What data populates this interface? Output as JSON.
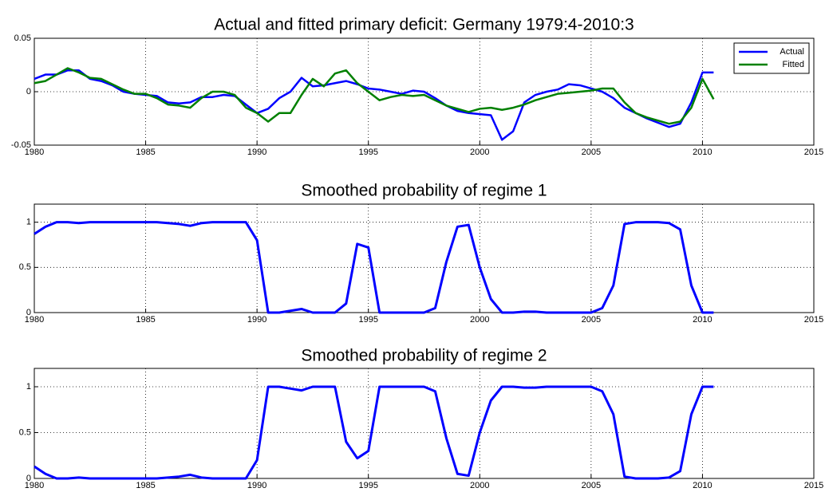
{
  "chart_data": [
    {
      "type": "line",
      "title": "Actual and fitted primary deficit: Germany 1979:4-2010:3",
      "x": [
        1980,
        1980.5,
        1981,
        1981.5,
        1982,
        1982.5,
        1983,
        1983.5,
        1984,
        1984.5,
        1985,
        1985.5,
        1986,
        1986.5,
        1987,
        1987.5,
        1988,
        1988.5,
        1989,
        1989.5,
        1990,
        1990.5,
        1991,
        1991.5,
        1992,
        1992.5,
        1993,
        1993.5,
        1994,
        1994.5,
        1995,
        1995.5,
        1996,
        1996.5,
        1997,
        1997.5,
        1998,
        1998.5,
        1999,
        1999.5,
        2000,
        2000.5,
        2001,
        2001.5,
        2002,
        2002.5,
        2003,
        2003.5,
        2004,
        2004.5,
        2005,
        2005.5,
        2006,
        2006.5,
        2007,
        2007.5,
        2008,
        2008.5,
        2009,
        2009.5,
        2010,
        2010.5
      ],
      "series": [
        {
          "name": "Actual",
          "color": "#0000ff",
          "values": [
            0.012,
            0.016,
            0.016,
            0.02,
            0.02,
            0.012,
            0.01,
            0.006,
            0.0,
            -0.002,
            -0.003,
            -0.004,
            -0.01,
            -0.011,
            -0.01,
            -0.005,
            -0.005,
            -0.003,
            -0.004,
            -0.012,
            -0.02,
            -0.016,
            -0.006,
            0.0,
            0.013,
            0.005,
            0.006,
            0.008,
            0.01,
            0.007,
            0.003,
            0.002,
            0.0,
            -0.002,
            0.001,
            0.0,
            -0.006,
            -0.013,
            -0.018,
            -0.02,
            -0.021,
            -0.022,
            -0.045,
            -0.037,
            -0.01,
            -0.003,
            0.0,
            0.002,
            0.007,
            0.006,
            0.003,
            0.0,
            -0.006,
            -0.015,
            -0.02,
            -0.025,
            -0.029,
            -0.033,
            -0.03,
            -0.01,
            0.018,
            0.018
          ]
        },
        {
          "name": "Fitted",
          "color": "#008000",
          "values": [
            0.008,
            0.01,
            0.016,
            0.022,
            0.018,
            0.013,
            0.012,
            0.007,
            0.002,
            -0.002,
            -0.002,
            -0.006,
            -0.012,
            -0.013,
            -0.015,
            -0.006,
            0.0,
            0.0,
            -0.003,
            -0.015,
            -0.02,
            -0.028,
            -0.02,
            -0.02,
            -0.003,
            0.012,
            0.005,
            0.017,
            0.02,
            0.008,
            0.0,
            -0.008,
            -0.005,
            -0.003,
            -0.004,
            -0.003,
            -0.008,
            -0.013,
            -0.016,
            -0.019,
            -0.016,
            -0.015,
            -0.017,
            -0.015,
            -0.012,
            -0.008,
            -0.005,
            -0.002,
            -0.001,
            0.0,
            0.001,
            0.003,
            0.003,
            -0.01,
            -0.02,
            -0.024,
            -0.027,
            -0.03,
            -0.028,
            -0.015,
            0.012,
            -0.007
          ]
        }
      ],
      "xlim": [
        1980,
        2015
      ],
      "xticks": [
        1980,
        1985,
        1990,
        1995,
        2000,
        2005,
        2010,
        2015
      ],
      "ylim": [
        -0.05,
        0.05
      ],
      "yticks": [
        -0.05,
        0,
        0.05
      ],
      "grid": true,
      "legend": "upper right"
    },
    {
      "type": "line",
      "title": "Smoothed probability of regime 1",
      "x": [
        1980,
        1980.5,
        1981,
        1981.5,
        1982,
        1982.5,
        1983,
        1983.5,
        1984,
        1984.5,
        1985,
        1985.5,
        1986,
        1986.5,
        1987,
        1987.5,
        1988,
        1988.5,
        1989,
        1989.5,
        1990,
        1990.5,
        1991,
        1991.5,
        1992,
        1992.5,
        1993,
        1993.5,
        1994,
        1994.5,
        1995,
        1995.5,
        1996,
        1996.5,
        1997,
        1997.5,
        1998,
        1998.5,
        1999,
        1999.5,
        2000,
        2000.5,
        2001,
        2001.5,
        2002,
        2002.5,
        2003,
        2003.5,
        2004,
        2004.5,
        2005,
        2005.5,
        2006,
        2006.5,
        2007,
        2007.5,
        2008,
        2008.5,
        2009,
        2009.5,
        2010,
        2010.5
      ],
      "values": [
        0.87,
        0.95,
        1,
        1,
        0.99,
        1,
        1,
        1,
        1,
        1,
        1,
        1,
        0.99,
        0.98,
        0.96,
        0.99,
        1,
        1,
        1,
        1,
        0.8,
        0,
        0,
        0.02,
        0.04,
        0,
        0,
        0,
        0.1,
        0.76,
        0.72,
        0,
        0,
        0,
        0,
        0,
        0.05,
        0.56,
        0.95,
        0.97,
        0.5,
        0.15,
        0,
        0,
        0.01,
        0.01,
        0,
        0,
        0,
        0,
        0,
        0.05,
        0.3,
        0.98,
        1,
        1,
        1,
        0.99,
        0.92,
        0.3,
        0,
        0
      ],
      "color": "#0000ff",
      "xlim": [
        1980,
        2015
      ],
      "xticks": [
        1980,
        1985,
        1990,
        1995,
        2000,
        2005,
        2010,
        2015
      ],
      "ylim": [
        0,
        1.2
      ],
      "yticks": [
        0,
        0.5,
        1
      ],
      "grid": true
    },
    {
      "type": "line",
      "title": "Smoothed probability of regime 2",
      "x": [
        1980,
        1980.5,
        1981,
        1981.5,
        1982,
        1982.5,
        1983,
        1983.5,
        1984,
        1984.5,
        1985,
        1985.5,
        1986,
        1986.5,
        1987,
        1987.5,
        1988,
        1988.5,
        1989,
        1989.5,
        1990,
        1990.5,
        1991,
        1991.5,
        1992,
        1992.5,
        1993,
        1993.5,
        1994,
        1994.5,
        1995,
        1995.5,
        1996,
        1996.5,
        1997,
        1997.5,
        1998,
        1998.5,
        1999,
        1999.5,
        2000,
        2000.5,
        2001,
        2001.5,
        2002,
        2002.5,
        2003,
        2003.5,
        2004,
        2004.5,
        2005,
        2005.5,
        2006,
        2006.5,
        2007,
        2007.5,
        2008,
        2008.5,
        2009,
        2009.5,
        2010,
        2010.5
      ],
      "values": [
        0.13,
        0.05,
        0,
        0,
        0.01,
        0,
        0,
        0,
        0,
        0,
        0,
        0,
        0.01,
        0.02,
        0.04,
        0.01,
        0,
        0,
        0,
        0,
        0.2,
        1,
        1,
        0.98,
        0.96,
        1,
        1,
        1,
        0.4,
        0.22,
        0.3,
        1,
        1,
        1,
        1,
        1,
        0.95,
        0.44,
        0.05,
        0.03,
        0.5,
        0.85,
        1,
        1,
        0.99,
        0.99,
        1,
        1,
        1,
        1,
        1,
        0.95,
        0.7,
        0.02,
        0,
        0,
        0,
        0.01,
        0.08,
        0.7,
        1,
        1
      ],
      "color": "#0000ff",
      "xlim": [
        1980,
        2015
      ],
      "xticks": [
        1980,
        1985,
        1990,
        1995,
        2000,
        2005,
        2010,
        2015
      ],
      "ylim": [
        0,
        1.2
      ],
      "yticks": [
        0,
        0.5,
        1
      ],
      "grid": true
    }
  ]
}
